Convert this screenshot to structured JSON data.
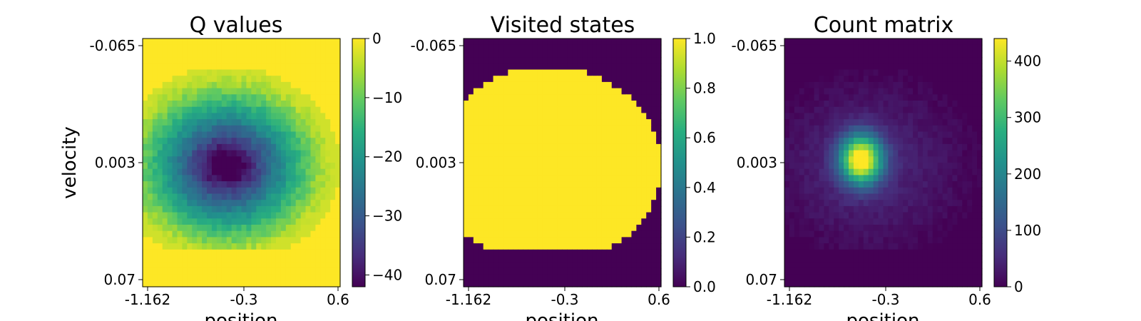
{
  "chart_data": [
    {
      "type": "heatmap",
      "title": "Q values",
      "xlabel": "position",
      "ylabel": "velocity",
      "x_tick_labels": [
        "-1.162",
        "-0.3",
        "0.6"
      ],
      "y_tick_labels": [
        "-0.065",
        "0.003",
        "0.07"
      ],
      "colorbar": {
        "min": -42,
        "max": 0,
        "ticks": [
          0,
          -10,
          -20,
          -30,
          -40
        ],
        "tick_labels": [
          "0",
          "−10",
          "−20",
          "−30",
          "−40"
        ]
      },
      "grid": false
    },
    {
      "type": "heatmap",
      "title": "Visited states",
      "xlabel": "position",
      "ylabel": "",
      "x_tick_labels": [
        "-1.162",
        "-0.3",
        "0.6"
      ],
      "y_tick_labels": [
        "-0.065",
        "0.003",
        "0.07"
      ],
      "colorbar": {
        "min": 0,
        "max": 1,
        "ticks": [
          1.0,
          0.8,
          0.6,
          0.4,
          0.2,
          0.0
        ],
        "tick_labels": [
          "1.0",
          "0.8",
          "0.6",
          "0.4",
          "0.2",
          "0.0"
        ]
      },
      "grid": false
    },
    {
      "type": "heatmap",
      "title": "Count matrix",
      "xlabel": "position",
      "ylabel": "",
      "x_tick_labels": [
        "-1.162",
        "-0.3",
        "0.6"
      ],
      "y_tick_labels": [
        "-0.065",
        "0.003",
        "0.07"
      ],
      "colorbar": {
        "min": 0,
        "max": 440,
        "ticks": [
          400,
          300,
          200,
          100,
          0
        ],
        "tick_labels": [
          "400",
          "300",
          "200",
          "100",
          "0"
        ]
      },
      "grid": false
    }
  ],
  "colormap": "viridis"
}
